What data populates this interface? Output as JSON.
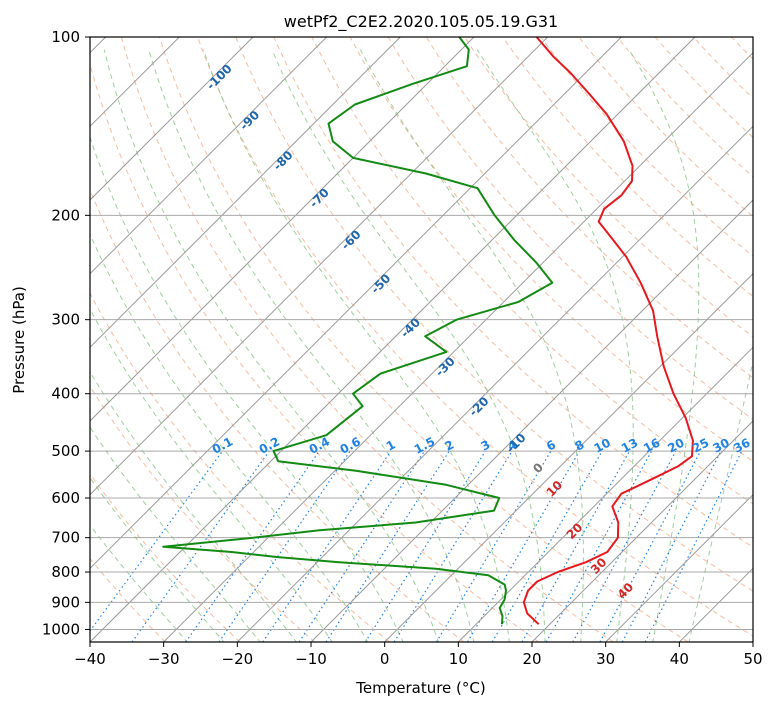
{
  "chart_data": {
    "type": "line",
    "subtype": "skew-t log-p sounding",
    "title": "wetPf2_C2E2.2020.105.05.19.G31",
    "xlabel": "Temperature (°C)",
    "ylabel": "Pressure (hPa)",
    "xlim": [
      -40,
      50
    ],
    "ylim_pressure": [
      1050,
      100
    ],
    "y_scale": "log",
    "x_ticks": [
      -40,
      -30,
      -20,
      -10,
      0,
      10,
      20,
      30,
      40,
      50
    ],
    "y_ticks": [
      100,
      200,
      300,
      400,
      500,
      600,
      700,
      800,
      900,
      1000
    ],
    "grid": true,
    "colors": {
      "temperature": "#e6191e",
      "dewpoint": "#138a13",
      "isotherm": "#9a9a9a",
      "isobar": "#a8a8a8",
      "dry_adiabat": "#f4a582",
      "moist_adiabat": "#7fbf7f",
      "mixing_ratio": "#1f83e6",
      "dry_label": "#d62728",
      "moist_label": "#2166ac",
      "mixing_label": "#1f83e6"
    },
    "series": [
      {
        "key": "temperature",
        "points": [
          [
            980,
            18.5
          ],
          [
            940,
            15.5
          ],
          [
            900,
            13.5
          ],
          [
            860,
            12.5
          ],
          [
            830,
            12.5
          ],
          [
            800,
            14.0
          ],
          [
            770,
            16.5
          ],
          [
            740,
            18.0
          ],
          [
            700,
            17.5
          ],
          [
            660,
            15.5
          ],
          [
            620,
            12.5
          ],
          [
            590,
            12.0
          ],
          [
            560,
            14.0
          ],
          [
            530,
            16.0
          ],
          [
            510,
            16.5
          ],
          [
            480,
            14.5
          ],
          [
            440,
            10.5
          ],
          [
            400,
            5.5
          ],
          [
            360,
            0.5
          ],
          [
            320,
            -4.5
          ],
          [
            290,
            -8.5
          ],
          [
            260,
            -14.0
          ],
          [
            235,
            -19.5
          ],
          [
            215,
            -25.0
          ],
          [
            205,
            -28.0
          ],
          [
            195,
            -29.0
          ],
          [
            185,
            -28.5
          ],
          [
            175,
            -29.0
          ],
          [
            165,
            -31.0
          ],
          [
            150,
            -35.5
          ],
          [
            135,
            -41.5
          ],
          [
            125,
            -46.5
          ],
          [
            115,
            -52.0
          ],
          [
            108,
            -56.5
          ],
          [
            100,
            -61.5
          ]
        ]
      },
      {
        "key": "dewpoint",
        "points": [
          [
            980,
            13.5
          ],
          [
            950,
            12.5
          ],
          [
            920,
            11.0
          ],
          [
            890,
            10.5
          ],
          [
            860,
            9.5
          ],
          [
            840,
            8.5
          ],
          [
            810,
            5.0
          ],
          [
            790,
            -3.0
          ],
          [
            770,
            -17.0
          ],
          [
            755,
            -26.0
          ],
          [
            740,
            -33.0
          ],
          [
            725,
            -43.0
          ],
          [
            700,
            -32.0
          ],
          [
            680,
            -24.0
          ],
          [
            660,
            -12.0
          ],
          [
            630,
            -3.0
          ],
          [
            600,
            -4.0
          ],
          [
            570,
            -13.0
          ],
          [
            540,
            -27.0
          ],
          [
            520,
            -39.0
          ],
          [
            500,
            -41.0
          ],
          [
            470,
            -36.0
          ],
          [
            420,
            -35.0
          ],
          [
            400,
            -38.0
          ],
          [
            370,
            -37.0
          ],
          [
            340,
            -31.0
          ],
          [
            320,
            -36.0
          ],
          [
            300,
            -34.0
          ],
          [
            280,
            -28.0
          ],
          [
            260,
            -26.0
          ],
          [
            240,
            -31.0
          ],
          [
            220,
            -37.0
          ],
          [
            200,
            -43.0
          ],
          [
            180,
            -49.0
          ],
          [
            170,
            -58.0
          ],
          [
            160,
            -70.0
          ],
          [
            150,
            -75.0
          ],
          [
            140,
            -78.0
          ],
          [
            130,
            -77.0
          ],
          [
            120,
            -72.0
          ],
          [
            112,
            -67.0
          ],
          [
            105,
            -69.0
          ],
          [
            100,
            -72.0
          ]
        ]
      }
    ],
    "mixing_ratio_lines": [
      "0.1",
      "0.2",
      "0.4",
      "0.6",
      "1",
      "1.5",
      "2",
      "3",
      "4",
      "6",
      "8",
      "10",
      "13",
      "16",
      "20",
      "25",
      "30",
      "36"
    ],
    "dry_adiabat_labels": [
      "10",
      "20",
      "30",
      "40"
    ],
    "moist_adiabat_labels": [
      "-100",
      "-90",
      "-80",
      "-70",
      "-60",
      "-50",
      "-40",
      "-30",
      "-20",
      "-10"
    ],
    "extra_labels": [
      "0"
    ]
  }
}
